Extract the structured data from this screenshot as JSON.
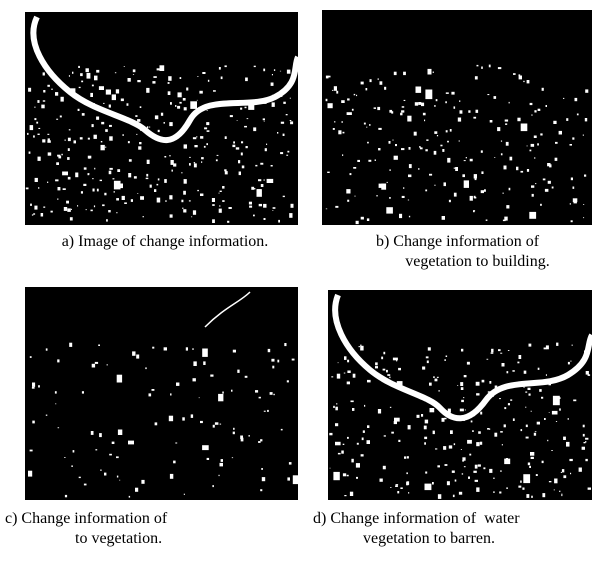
{
  "figure": {
    "panels": [
      {
        "caption": [
          "a) Image of change information."
        ]
      },
      {
        "caption": [
          "b) Change information of",
          "vegetation to building."
        ]
      },
      {
        "caption": [
          "c) Change information of",
          "to vegetation."
        ]
      },
      {
        "caption": [
          "d) Change information of  water",
          "vegetation to barren."
        ]
      }
    ]
  }
}
